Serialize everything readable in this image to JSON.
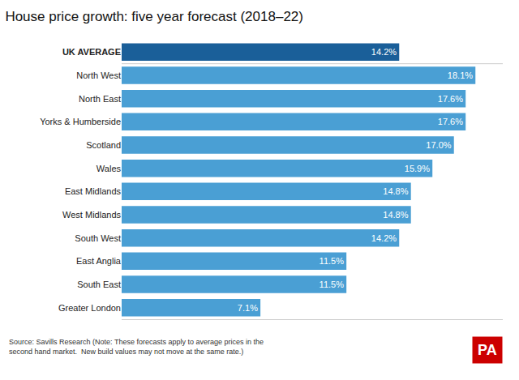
{
  "chart_data": {
    "type": "bar",
    "orientation": "horizontal",
    "title": "House price growth: five year forecast (2018–22)",
    "categories": [
      "UK AVERAGE",
      "North West",
      "North East",
      "Yorks & Humberside",
      "Scotland",
      "Wales",
      "East Midlands",
      "West Midlands",
      "South West",
      "East Anglia",
      "South East",
      "Greater London"
    ],
    "values": [
      14.2,
      18.1,
      17.6,
      17.6,
      17.0,
      15.9,
      14.8,
      14.8,
      14.2,
      11.5,
      11.5,
      7.1
    ],
    "value_labels": [
      "14.2%",
      "18.1%",
      "17.6%",
      "17.6%",
      "17.0%",
      "15.9%",
      "14.8%",
      "14.8%",
      "14.2%",
      "11.5%",
      "11.5%",
      "7.1%"
    ],
    "data_labels": true,
    "colors": [
      "#1a5f99",
      "#4a9fd4",
      "#4a9fd4",
      "#4a9fd4",
      "#4a9fd4",
      "#4a9fd4",
      "#4a9fd4",
      "#4a9fd4",
      "#4a9fd4",
      "#4a9fd4",
      "#4a9fd4",
      "#4a9fd4"
    ],
    "xlim": [
      0,
      19.5
    ],
    "tick_labels": "y",
    "grid": false,
    "annotations": [
      "Source: Savills Research (Note: These forecasts apply to average prices in the\nsecond hand market.  New build values may not move at the same rate.)",
      "PA"
    ]
  }
}
